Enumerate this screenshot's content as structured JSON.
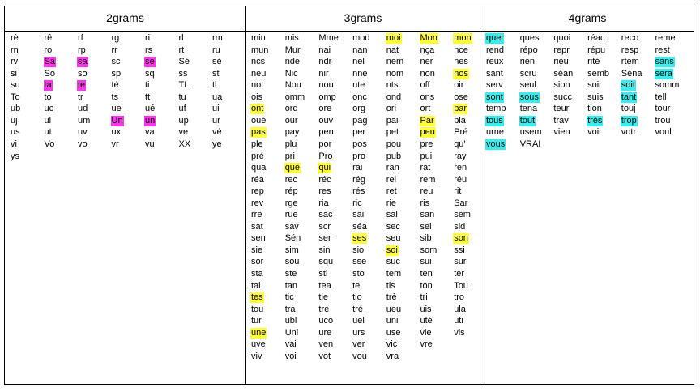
{
  "headers": [
    "2grams",
    "3grams",
    "4grams"
  ],
  "highlight_colors": {
    "magenta": "#ff33ee",
    "yellow": "#ffff33",
    "cyan": "#33f0f0"
  },
  "sections": [
    {
      "columns": [
        [
          "rè",
          "rn",
          "rv",
          "si",
          "su",
          "To",
          "ub",
          "uj",
          "us",
          "vi",
          "ys"
        ],
        [
          "rê",
          "ro",
          "Sa",
          "So",
          "ta",
          "to",
          "uc",
          "ul",
          "ut",
          "Vo"
        ],
        [
          "rf",
          "rp",
          "sa",
          "so",
          "te",
          "tr",
          "ud",
          "um",
          "uv",
          "vo"
        ],
        [
          "rg",
          "rr",
          "sc",
          "sp",
          "té",
          "ts",
          "ue",
          "Un",
          "ux",
          "vr"
        ],
        [
          "ri",
          "rs",
          "se",
          "sq",
          "ti",
          "tt",
          "ué",
          "un",
          "va",
          "vu"
        ],
        [
          "rl",
          "rt",
          "Sé",
          "ss",
          "TL",
          "tu",
          "uf",
          "up",
          "ve",
          "XX"
        ],
        [
          "rm",
          "ru",
          "sé",
          "st",
          "tl",
          "ua",
          "ui",
          "ur",
          "vé",
          "ye"
        ]
      ],
      "highlights": {
        "Sa": "magenta",
        "sa": "magenta",
        "se": "magenta",
        "ta": "magenta",
        "te": "magenta",
        "Un": "magenta",
        "un": "magenta"
      }
    },
    {
      "columns": [
        [
          "min",
          "mun",
          "ncs",
          "neu",
          "not",
          "ois",
          "ont",
          "oué",
          "pas",
          "ple",
          "pré",
          "qua",
          "réa",
          "rep",
          "rev",
          "rre",
          "sat",
          "sen",
          "sie",
          "sor",
          "sta",
          "tai",
          "tes",
          "tou",
          "tur",
          "une",
          "uve",
          "viv"
        ],
        [
          "mis",
          "Mur",
          "nde",
          "Nic",
          "Nou",
          "omm",
          "ord",
          "our",
          "pay",
          "plu",
          "pri",
          "que",
          "rec",
          "rép",
          "rge",
          "rue",
          "sav",
          "Sén",
          "sim",
          "sou",
          "ste",
          "tan",
          "tic",
          "tra",
          "ubl",
          "Uni",
          "vai",
          "voi"
        ],
        [
          "Mme",
          "nai",
          "ndr",
          "nir",
          "nou",
          "omp",
          "ore",
          "ouv",
          "pen",
          "por",
          "Pro",
          "qui",
          "réc",
          "res",
          "ria",
          "sac",
          "scr",
          "ser",
          "sin",
          "squ",
          "sti",
          "tea",
          "tie",
          "tre",
          "uco",
          "ure",
          "ven",
          "vot"
        ],
        [
          "mod",
          "nan",
          "nel",
          "nne",
          "nte",
          "onc",
          "org",
          "pag",
          "per",
          "pos",
          "pro",
          "rai",
          "rég",
          "rés",
          "ric",
          "sai",
          "séa",
          "ses",
          "sio",
          "sse",
          "sto",
          "tel",
          "tio",
          "tré",
          "uel",
          "urs",
          "ver",
          "vou"
        ],
        [
          "moi",
          "nat",
          "nem",
          "nom",
          "nts",
          "ond",
          "ori",
          "pai",
          "pet",
          "pou",
          "pub",
          "ran",
          "rel",
          "ret",
          "rie",
          "sal",
          "sec",
          "seu",
          "soi",
          "suc",
          "tem",
          "tis",
          "trè",
          "ueu",
          "uni",
          "use",
          "vic",
          "vra"
        ],
        [
          "Mon",
          "nça",
          "ner",
          "non",
          "off",
          "ons",
          "ort",
          "Par",
          "peu",
          "pre",
          "pui",
          "rat",
          "rem",
          "reu",
          "ris",
          "san",
          "sei",
          "sib",
          "som",
          "sui",
          "ten",
          "ton",
          "tri",
          "uis",
          "uté",
          "vie",
          "vre"
        ],
        [
          "mon",
          "nce",
          "nes",
          "nos",
          "oir",
          "ose",
          "par",
          "pla",
          "Pré",
          "qu'",
          "ray",
          "ren",
          "réu",
          "rit",
          "Sar",
          "sem",
          "sid",
          "son",
          "ssi",
          "sur",
          "ter",
          "Tou",
          "tro",
          "ula",
          "uti",
          "vis"
        ]
      ],
      "highlights": {
        "moi": "yellow",
        "Mon": "yellow",
        "mon": "yellow",
        "nos": "yellow",
        "ont": "yellow",
        "Par": "yellow",
        "par": "yellow",
        "pas": "yellow",
        "peu": "yellow",
        "que": "yellow",
        "qui": "yellow",
        "ses": "yellow",
        "soi": "yellow",
        "son": "yellow",
        "tes": "yellow",
        "une": "yellow"
      }
    },
    {
      "columns": [
        [
          "quel",
          "rend",
          "reux",
          "sant",
          "serv",
          "sont",
          "temp",
          "tous",
          "urne",
          "vous"
        ],
        [
          "ques",
          "répo",
          "rien",
          "scru",
          "seul",
          "sous",
          "tena",
          "tout",
          "usem",
          "VRAI"
        ],
        [
          "quoi",
          "repr",
          "rieu",
          "séan",
          "sion",
          "succ",
          "teur",
          "trav",
          "vien"
        ],
        [
          "réac",
          "répu",
          "rité",
          "semb",
          "soir",
          "suis",
          "tion",
          "très",
          "voir"
        ],
        [
          "reco",
          "resp",
          "rtem",
          "Séna",
          "soit",
          "tant",
          "touj",
          "trop",
          "votr"
        ],
        [
          "reme",
          "rest",
          "sans",
          "sera",
          "somm",
          "tell",
          "tour",
          "trou",
          "voul"
        ]
      ],
      "highlights": {
        "quel": "cyan",
        "sans": "cyan",
        "sera": "cyan",
        "soit": "cyan",
        "sont": "cyan",
        "sous": "cyan",
        "tant": "cyan",
        "tous": "cyan",
        "tout": "cyan",
        "très": "cyan",
        "trop": "cyan",
        "vous": "cyan"
      }
    }
  ]
}
